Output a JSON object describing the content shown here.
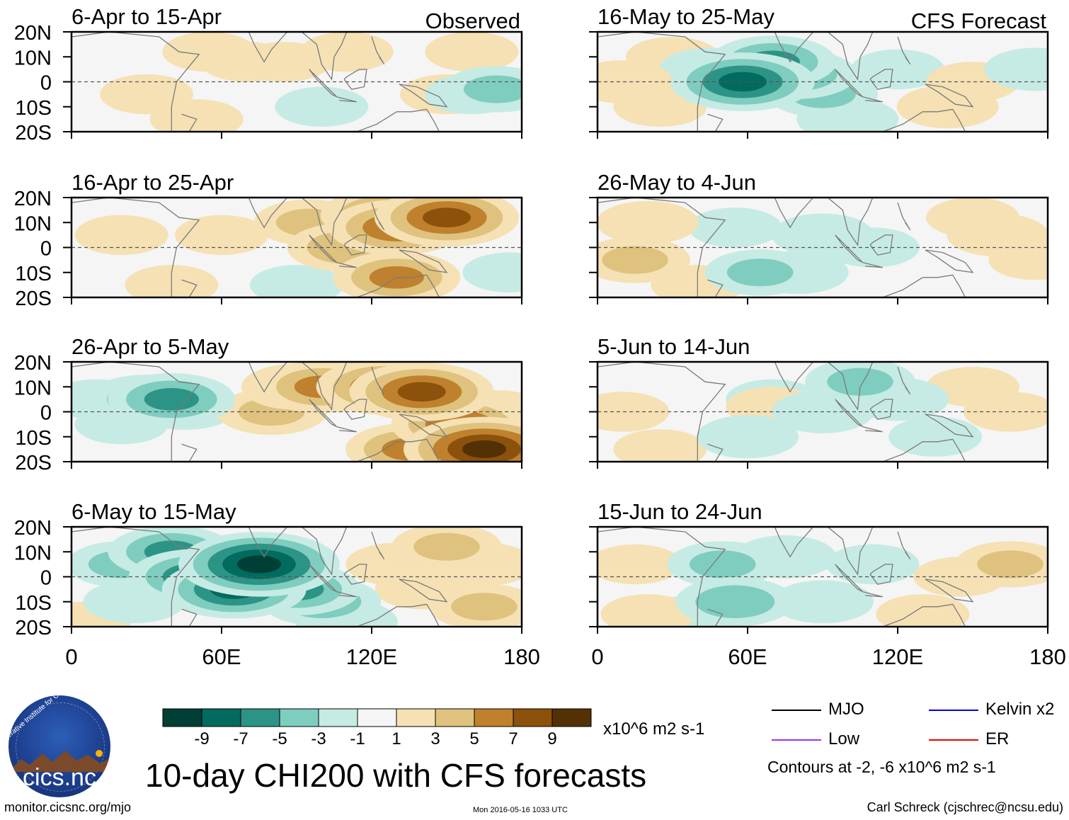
{
  "chart_data": {
    "type": "heatmap",
    "title": "10-day CHI200 with CFS forecasts",
    "units": "x10^6 m2 s-1",
    "xlim": [
      0,
      180
    ],
    "ylim": [
      -20,
      20
    ],
    "x_ticks": [
      "0",
      "60E",
      "120E",
      "180"
    ],
    "y_ticks": [
      "20N",
      "10N",
      "0",
      "10S",
      "20S"
    ],
    "columns": [
      "Observed",
      "CFS Forecast"
    ],
    "colorbar": {
      "levels": [
        "-9",
        "-7",
        "-5",
        "-3",
        "-1",
        "1",
        "3",
        "5",
        "7",
        "9"
      ],
      "colors": [
        "#003f35",
        "#006b5e",
        "#2c9486",
        "#7fcdbf",
        "#c6ebe4",
        "#f5f5f5",
        "#f5e1b4",
        "#dfc27d",
        "#bf812d",
        "#8c510a",
        "#543005"
      ]
    },
    "legend": [
      {
        "label": "MJO",
        "color": "#000000"
      },
      {
        "label": "Kelvin x2",
        "color": "#0000ee"
      },
      {
        "label": "Low",
        "color": "#9933ff"
      },
      {
        "label": "ER",
        "color": "#ee0000"
      }
    ],
    "contour_note": "Contours at -2, -6 x10^6 m2 s-1",
    "panels": [
      {
        "period": "6-Apr to 15-Apr",
        "tag": "Observed",
        "blobs": [
          [
            70,
            8,
            1
          ],
          [
            30,
            -5,
            1
          ],
          [
            150,
            -5,
            1
          ],
          [
            110,
            12,
            1
          ],
          [
            160,
            12,
            1
          ],
          [
            55,
            12,
            1
          ],
          [
            50,
            -15,
            1
          ],
          [
            85,
            8,
            1
          ],
          [
            170,
            -3,
            -3
          ],
          [
            160,
            -5,
            -1
          ],
          [
            100,
            -10,
            -1
          ]
        ]
      },
      {
        "period": "16-Apr to 25-Apr",
        "tag": "",
        "blobs": [
          [
            130,
            8,
            6
          ],
          [
            150,
            12,
            7
          ],
          [
            125,
            13,
            5
          ],
          [
            130,
            -12,
            5
          ],
          [
            110,
            0,
            4
          ],
          [
            95,
            10,
            3
          ],
          [
            60,
            5,
            1
          ],
          [
            20,
            5,
            1
          ],
          [
            40,
            -15,
            1
          ],
          [
            90,
            -15,
            -1
          ],
          [
            175,
            -10,
            -1
          ]
        ]
      },
      {
        "period": "26-Apr to 5-May",
        "tag": "",
        "blobs": [
          [
            30,
            5,
            -4
          ],
          [
            40,
            5,
            -5
          ],
          [
            45,
            2,
            -3
          ],
          [
            20,
            -5,
            -1
          ],
          [
            10,
            5,
            -1
          ],
          [
            140,
            8,
            7
          ],
          [
            125,
            10,
            6
          ],
          [
            100,
            10,
            5
          ],
          [
            165,
            -15,
            9
          ],
          [
            155,
            -5,
            6
          ],
          [
            135,
            -15,
            5
          ],
          [
            80,
            0,
            3
          ],
          [
            90,
            10,
            3
          ],
          [
            170,
            0,
            2
          ]
        ]
      },
      {
        "period": "6-May to 15-May",
        "tag": "",
        "blobs": [
          [
            75,
            5,
            -9
          ],
          [
            65,
            -5,
            -7
          ],
          [
            50,
            0,
            -6
          ],
          [
            40,
            10,
            -5
          ],
          [
            90,
            -5,
            -5
          ],
          [
            100,
            -10,
            -4
          ],
          [
            20,
            5,
            -3
          ],
          [
            25,
            -10,
            -2
          ],
          [
            110,
            -18,
            -2
          ],
          [
            150,
            12,
            3
          ],
          [
            130,
            5,
            2
          ],
          [
            165,
            5,
            2
          ],
          [
            165,
            -12,
            3
          ],
          [
            140,
            -5,
            1
          ],
          [
            5,
            -18,
            1
          ]
        ]
      },
      {
        "period": "16-May to 25-May",
        "tag": "CFS Forecast",
        "blobs": [
          [
            58,
            0,
            -7
          ],
          [
            70,
            8,
            -5
          ],
          [
            80,
            3,
            -4
          ],
          [
            90,
            -5,
            -3
          ],
          [
            100,
            -15,
            -2
          ],
          [
            45,
            5,
            -2
          ],
          [
            120,
            5,
            -1
          ],
          [
            175,
            5,
            -2
          ],
          [
            10,
            0,
            2
          ],
          [
            25,
            -10,
            1
          ],
          [
            140,
            -10,
            2
          ],
          [
            150,
            0,
            1
          ],
          [
            30,
            10,
            1
          ]
        ]
      },
      {
        "period": "26-May to 4-Jun",
        "tag": "",
        "blobs": [
          [
            65,
            -10,
            -3
          ],
          [
            90,
            5,
            -2
          ],
          [
            80,
            -10,
            -2
          ],
          [
            55,
            8,
            -1
          ],
          [
            110,
            0,
            -1
          ],
          [
            15,
            -5,
            3
          ],
          [
            20,
            10,
            2
          ],
          [
            160,
            5,
            2
          ],
          [
            175,
            -5,
            1
          ],
          [
            40,
            -15,
            1
          ],
          [
            150,
            12,
            1
          ]
        ]
      },
      {
        "period": "5-Jun to 14-Jun",
        "tag": "",
        "blobs": [
          [
            105,
            12,
            -3
          ],
          [
            120,
            5,
            -2
          ],
          [
            90,
            0,
            -2
          ],
          [
            60,
            -10,
            -2
          ],
          [
            70,
            5,
            -1
          ],
          [
            135,
            -10,
            -1
          ],
          [
            10,
            0,
            1
          ],
          [
            25,
            -15,
            1
          ],
          [
            165,
            0,
            1
          ],
          [
            70,
            2,
            1
          ],
          [
            150,
            10,
            1
          ]
        ]
      },
      {
        "period": "15-Jun to 24-Jun",
        "tag": "",
        "blobs": [
          [
            55,
            -10,
            -4
          ],
          [
            50,
            5,
            -3
          ],
          [
            75,
            8,
            -2
          ],
          [
            90,
            -10,
            -2
          ],
          [
            110,
            5,
            -1
          ],
          [
            40,
            -15,
            -1
          ],
          [
            165,
            5,
            3
          ],
          [
            145,
            0,
            1
          ],
          [
            15,
            5,
            1
          ],
          [
            20,
            -15,
            1
          ],
          [
            130,
            -15,
            1
          ]
        ]
      }
    ]
  },
  "logo": {
    "brand": "cics.nc",
    "ring_text": "Cooperative Institute for Climate and Satellites"
  },
  "footer": {
    "left": "monitor.cicsnc.org/mjo",
    "center": "Mon 2016-05-16 1033 UTC",
    "right": "Carl Schreck (cjschrec@ncsu.edu)"
  }
}
